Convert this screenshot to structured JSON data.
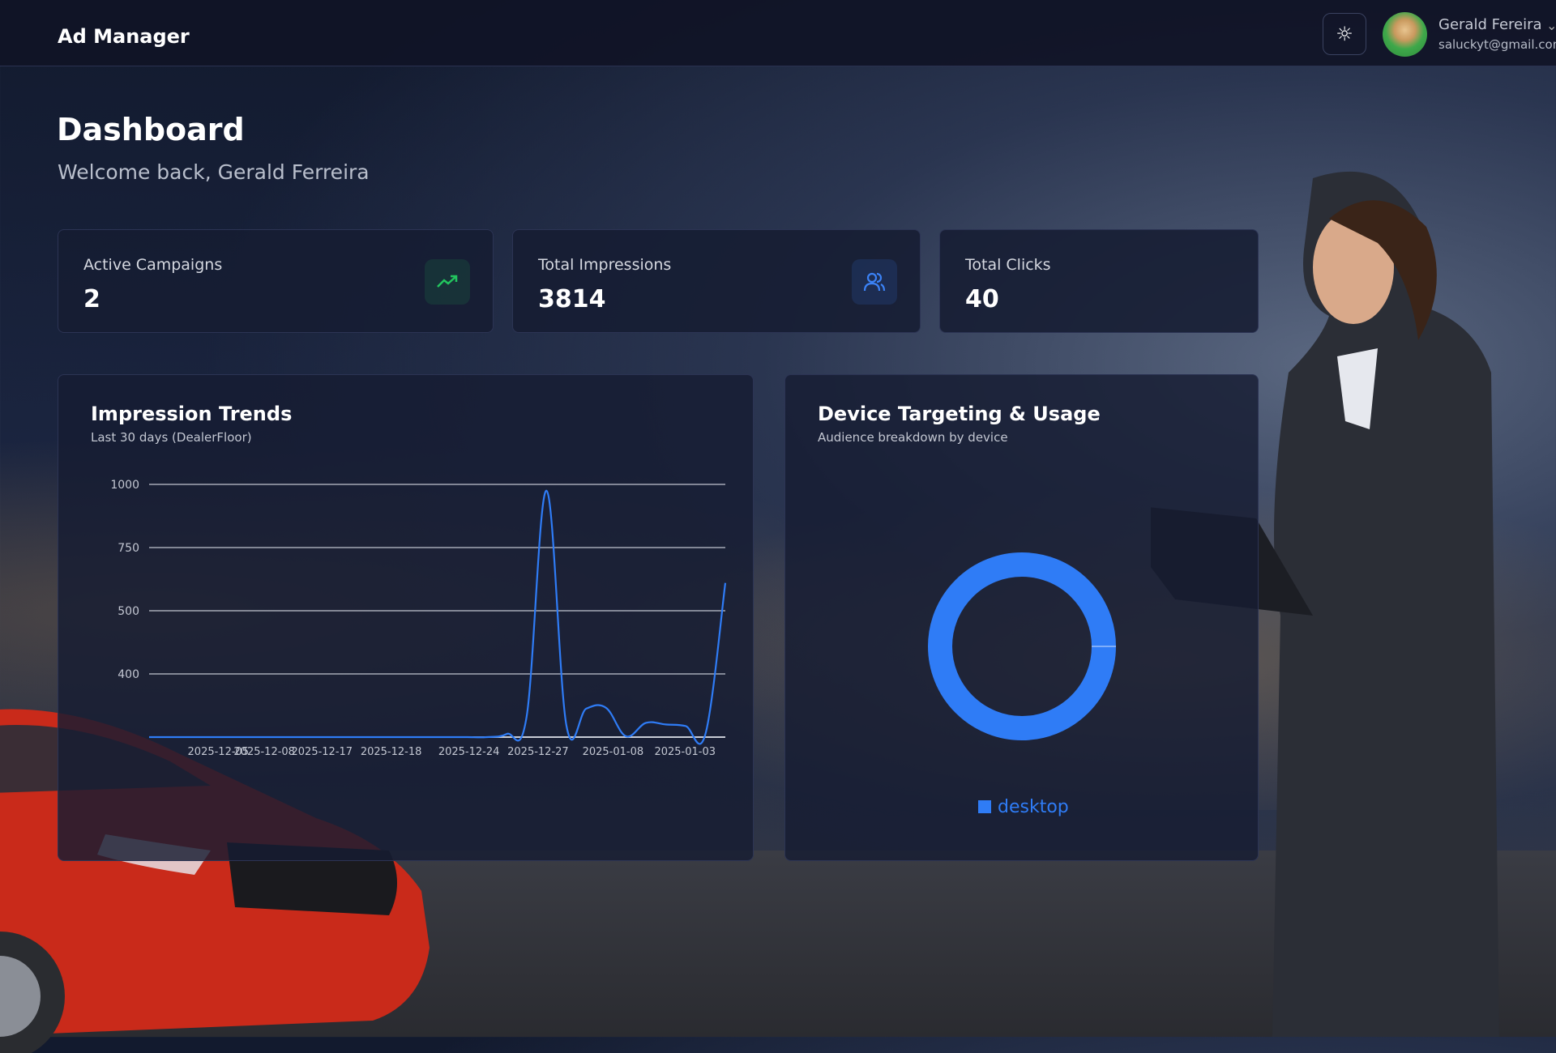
{
  "header": {
    "app_title": "Ad Manager",
    "theme_icon": "sun-icon",
    "user_name": "Gerald Fereira",
    "user_email": "saluckyt@gmail.com"
  },
  "page": {
    "title": "Dashboard",
    "welcome": "Welcome back, Gerald Ferreira"
  },
  "stats": [
    {
      "label": "Active Campaigns",
      "value": "2",
      "icon": "trending-up-icon",
      "icon_color": "#22c55e"
    },
    {
      "label": "Total Impressions",
      "value": "3814",
      "icon": "users-icon",
      "icon_color": "#3b82f6"
    },
    {
      "label": "Total Clicks",
      "value": "40"
    }
  ],
  "impression_panel": {
    "title": "Impression Trends",
    "subtitle": "Last 30 days (DealerFloor)"
  },
  "device_panel": {
    "title": "Device Targeting & Usage",
    "subtitle": "Audience breakdown by device"
  },
  "chart_data": [
    {
      "type": "line",
      "title": "Impression Trends",
      "y_ticks": [
        400,
        500,
        750,
        1000
      ],
      "ylim": [
        0,
        1000
      ],
      "grid": true,
      "color": "#2f7cf6",
      "x_tick_labels": [
        "2025-12-05",
        "2025-12-08",
        "2025-12-17",
        "2025-12-18",
        "2025-12-24",
        "2025-12-27",
        "2025-01-08",
        "2025-01-03"
      ],
      "values": [
        0,
        0,
        0,
        0,
        0,
        0,
        0,
        0,
        0,
        0,
        0,
        0,
        0,
        0,
        0,
        0,
        0,
        0,
        20,
        130,
        975,
        75,
        180,
        185,
        5,
        90,
        80,
        70,
        20,
        610
      ]
    },
    {
      "type": "pie",
      "variant": "donut",
      "title": "Device Targeting & Usage",
      "legend_position": "bottom",
      "slices": [
        {
          "label": "desktop",
          "value": 100,
          "color": "#2f7cf6"
        }
      ]
    }
  ]
}
